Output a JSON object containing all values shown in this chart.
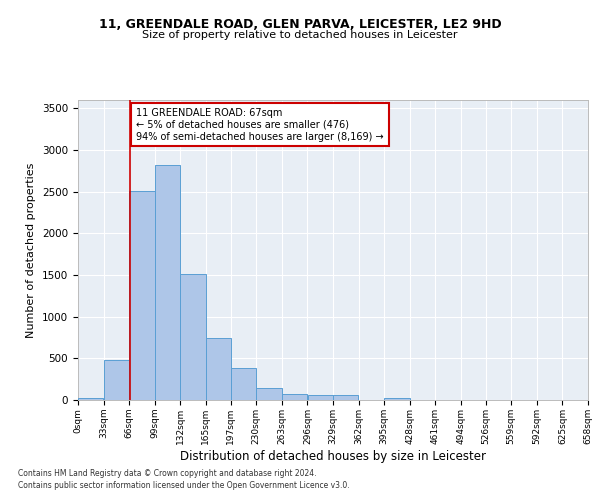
{
  "title1": "11, GREENDALE ROAD, GLEN PARVA, LEICESTER, LE2 9HD",
  "title2": "Size of property relative to detached houses in Leicester",
  "xlabel": "Distribution of detached houses by size in Leicester",
  "ylabel": "Number of detached properties",
  "bar_color": "#aec6e8",
  "bar_edge_color": "#5a9fd4",
  "background_color": "#e8eef5",
  "grid_color": "#ffffff",
  "property_line_x": 67,
  "property_line_color": "#cc0000",
  "annotation_text": "11 GREENDALE ROAD: 67sqm\n← 5% of detached houses are smaller (476)\n94% of semi-detached houses are larger (8,169) →",
  "annotation_box_color": "#cc0000",
  "bins": [
    0,
    33,
    66,
    99,
    132,
    165,
    197,
    230,
    263,
    296,
    329,
    362,
    395,
    428,
    461,
    494,
    526,
    559,
    592,
    625,
    658
  ],
  "bin_labels": [
    "0sqm",
    "33sqm",
    "66sqm",
    "99sqm",
    "132sqm",
    "165sqm",
    "197sqm",
    "230sqm",
    "263sqm",
    "296sqm",
    "329sqm",
    "362sqm",
    "395sqm",
    "428sqm",
    "461sqm",
    "494sqm",
    "526sqm",
    "559sqm",
    "592sqm",
    "625sqm",
    "658sqm"
  ],
  "bar_heights": [
    25,
    480,
    2510,
    2820,
    1510,
    750,
    385,
    140,
    75,
    55,
    55,
    0,
    25,
    0,
    0,
    0,
    0,
    0,
    0,
    0
  ],
  "ylim": [
    0,
    3600
  ],
  "yticks": [
    0,
    500,
    1000,
    1500,
    2000,
    2500,
    3000,
    3500
  ],
  "footer1": "Contains HM Land Registry data © Crown copyright and database right 2024.",
  "footer2": "Contains public sector information licensed under the Open Government Licence v3.0."
}
